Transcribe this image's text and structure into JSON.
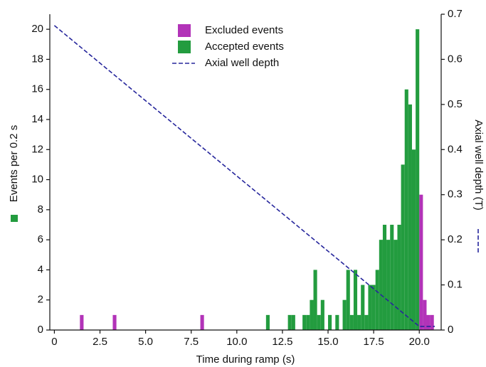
{
  "chart_data": {
    "type": "histogram",
    "xlabel": "Time during ramp (s)",
    "ylabel": "Events per 0.2 s",
    "y2label": "Axial well depth (T)",
    "xlim": [
      -0.25,
      21.2
    ],
    "ylim": [
      0,
      21
    ],
    "y2lim": [
      0,
      0.7
    ],
    "xticks": [
      0,
      2.5,
      {
        "value": 5,
        "label": "5.0"
      },
      7.5,
      {
        "value": 10,
        "label": "10.0"
      },
      12.5,
      {
        "value": 15,
        "label": "15.0"
      },
      17.5,
      {
        "value": 20,
        "label": "20.0"
      }
    ],
    "yticks": [
      0,
      2,
      4,
      6,
      8,
      10,
      12,
      14,
      16,
      18,
      20
    ],
    "y2ticks": [
      0,
      0.1,
      0.2,
      0.3,
      0.4,
      0.5,
      0.6,
      0.7
    ],
    "legend": "upper center",
    "bins": [
      1.4,
      1.6,
      1.8,
      2.0,
      2.2,
      2.4,
      2.6,
      2.8,
      3.0,
      3.2,
      3.4,
      3.6,
      3.8,
      4.0,
      4.2,
      4.4,
      4.6,
      4.8,
      5.0,
      5.2,
      5.4,
      5.6,
      5.8,
      6.0,
      6.2,
      6.4,
      6.6,
      6.8,
      7.0,
      7.2,
      7.4,
      7.6,
      7.8,
      8.0,
      8.2,
      8.4,
      8.6,
      8.8,
      9.0,
      9.2,
      9.4,
      9.6,
      9.8,
      10.0,
      10.2,
      10.4,
      10.6,
      10.8,
      11.0,
      11.2,
      11.4,
      11.6,
      11.8,
      12.0,
      12.2,
      12.4,
      12.6,
      12.8,
      13.0,
      13.2,
      13.4,
      13.6,
      13.8,
      14.0,
      14.2,
      14.4,
      14.6,
      14.8,
      15.0,
      15.2,
      15.4,
      15.6,
      15.8,
      16.0,
      16.2,
      16.4,
      16.6,
      16.8,
      17.0,
      17.2,
      17.4,
      17.6,
      17.8,
      18.0,
      18.2,
      18.4,
      18.6,
      18.8,
      19.0,
      19.2,
      19.4,
      19.6,
      19.8,
      20.0,
      20.2,
      20.4,
      20.6,
      20.8
    ],
    "series": [
      {
        "name": "Excluded events",
        "color": "#b233b8",
        "values": [
          1,
          0,
          0,
          0,
          0,
          0,
          0,
          0,
          0,
          1,
          0,
          0,
          0,
          0,
          0,
          0,
          0,
          0,
          0,
          0,
          0,
          0,
          0,
          0,
          0,
          0,
          0,
          0,
          0,
          0,
          0,
          0,
          0,
          1,
          0,
          0,
          0,
          0,
          0,
          0,
          0,
          0,
          0,
          0,
          0,
          0,
          0,
          0,
          0,
          0,
          0,
          0,
          0,
          0,
          0,
          0,
          0,
          0,
          0,
          0,
          0,
          0,
          0,
          0,
          0,
          0,
          0,
          0,
          0,
          0,
          0,
          0,
          0,
          0,
          0,
          0,
          0,
          0,
          0,
          0,
          0,
          0,
          0,
          0,
          0,
          0,
          0,
          0,
          0,
          0,
          0,
          0,
          0,
          9,
          2,
          1,
          1
        ]
      },
      {
        "name": "Accepted events",
        "color": "#239c3f",
        "values": [
          0,
          0,
          0,
          0,
          0,
          0,
          0,
          0,
          0,
          0,
          0,
          0,
          0,
          0,
          0,
          0,
          0,
          0,
          0,
          0,
          0,
          0,
          0,
          0,
          0,
          0,
          0,
          0,
          0,
          0,
          0,
          0,
          0,
          0,
          0,
          0,
          0,
          0,
          0,
          0,
          0,
          0,
          0,
          0,
          0,
          0,
          0,
          0,
          0,
          0,
          0,
          1,
          0,
          0,
          0,
          0,
          0,
          1,
          1,
          0,
          0,
          1,
          1,
          2,
          4,
          1,
          2,
          0,
          1,
          0,
          1,
          0,
          2,
          4,
          1,
          4,
          1,
          3,
          1,
          3,
          3,
          4,
          6,
          7,
          6,
          7,
          6,
          7,
          11,
          16,
          15,
          12,
          20,
          0,
          0,
          0,
          0
        ]
      },
      {
        "name": "Axial well depth",
        "type": "line",
        "axis": "y2",
        "color": "#26269c",
        "line_style": "dashed",
        "x": [
          0,
          20.0,
          20.85
        ],
        "values": [
          0.675,
          0.008,
          0.008
        ]
      }
    ]
  }
}
